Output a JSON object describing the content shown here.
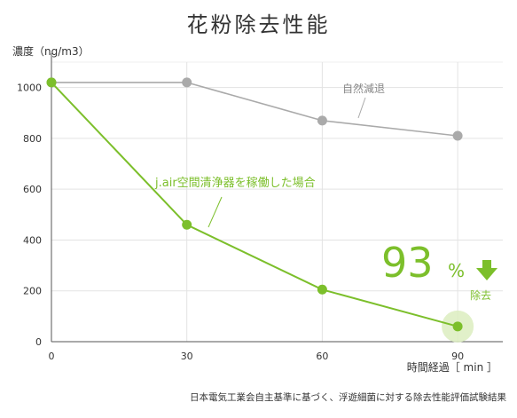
{
  "chart_data": {
    "type": "line",
    "title": "花粉除去性能",
    "ylabel": "濃度（ng/m3）",
    "xlabel": "時間経過［ min ］",
    "x": [
      0,
      30,
      60,
      90
    ],
    "xticks": [
      "0",
      "30",
      "60",
      "90"
    ],
    "yticks": [
      "0",
      "200",
      "400",
      "600",
      "800",
      "1000"
    ],
    "xlim": [
      0,
      100
    ],
    "ylim": [
      0,
      1100
    ],
    "grid": true,
    "series": [
      {
        "name": "自然減退",
        "values": [
          1020,
          1020,
          870,
          810
        ],
        "color": "#aaaaaa"
      },
      {
        "name": "j.air空間清浄器を稼働した場合",
        "values": [
          1020,
          460,
          205,
          60
        ],
        "color": "#7cbf2b"
      }
    ],
    "annotation": {
      "value": "93",
      "unit": "%",
      "label": "除去",
      "arrow_color": "#7cbf2b"
    },
    "footnote": "日本電気工業会自主基準に基づく、浮遊細菌に対する除去性能評価試験結果"
  }
}
